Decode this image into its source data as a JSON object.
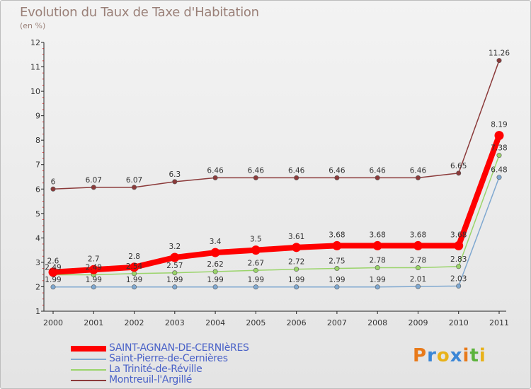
{
  "title": "Evolution du Taux de Taxe d'Habitation",
  "subtitle": "(en %)",
  "logo": {
    "letters": [
      "P",
      "r",
      "o",
      "x",
      "i",
      "t",
      "i"
    ],
    "colors": [
      "#e87a1a",
      "#3a86d6",
      "#e8b21a",
      "#3a86d6",
      "#e87a1a",
      "#5cb33c",
      "#e8b21a"
    ]
  },
  "chart_data": {
    "type": "line",
    "x": [
      "2000",
      "2001",
      "2002",
      "2003",
      "2004",
      "2005",
      "2006",
      "2007",
      "2008",
      "2009",
      "2010",
      "2011"
    ],
    "ylim": [
      1,
      12
    ],
    "yticks": [
      "1",
      "2",
      "3",
      "4",
      "5",
      "6",
      "7",
      "8",
      "9",
      "10",
      "11",
      "12"
    ],
    "grid": false,
    "legend_position": "bottom-left",
    "series": [
      {
        "name": "SAINT-AGNAN-DE-CERNIèRES",
        "color": "#ff0000",
        "width": 8,
        "values": [
          2.6,
          2.7,
          2.8,
          3.2,
          3.4,
          3.5,
          3.61,
          3.68,
          3.68,
          3.68,
          3.68,
          8.19
        ],
        "labels": [
          "2.6",
          "2.7",
          "2.8",
          "3.2",
          "3.4",
          "3.5",
          "3.61",
          "3.68",
          "3.68",
          "3.68",
          "3.68",
          "8.19"
        ]
      },
      {
        "name": "Saint-Pierre-de-Cernières",
        "color": "#7fa8d0",
        "width": 1.5,
        "values": [
          1.99,
          1.99,
          1.99,
          1.99,
          1.99,
          1.99,
          1.99,
          1.99,
          1.99,
          2.01,
          2.03,
          6.48
        ],
        "labels": [
          "1.99",
          "1.99",
          "1.99",
          "1.99",
          "1.99",
          "1.99",
          "1.99",
          "1.99",
          "1.99",
          "2.01",
          "2.03",
          "6.48"
        ]
      },
      {
        "name": "La Trinité-de-Réville",
        "color": "#9ad46a",
        "width": 1.5,
        "values": [
          2.49,
          2.49,
          2.54,
          2.57,
          2.62,
          2.67,
          2.72,
          2.75,
          2.78,
          2.78,
          2.83,
          7.38
        ],
        "labels": [
          "2.49",
          "2.49",
          "2.54",
          "2.57",
          "2.62",
          "2.67",
          "2.72",
          "2.75",
          "2.78",
          "2.78",
          "2.83",
          "7.38"
        ]
      },
      {
        "name": "Montreuil-l'Argillé",
        "color": "#8b3a3a",
        "width": 1.5,
        "values": [
          6,
          6.07,
          6.07,
          6.3,
          6.46,
          6.46,
          6.46,
          6.46,
          6.46,
          6.46,
          6.65,
          11.26
        ],
        "labels": [
          "6",
          "6.07",
          "6.07",
          "6.3",
          "6.46",
          "6.46",
          "6.46",
          "6.46",
          "6.46",
          "6.46",
          "6.65",
          "11.26"
        ]
      }
    ]
  }
}
